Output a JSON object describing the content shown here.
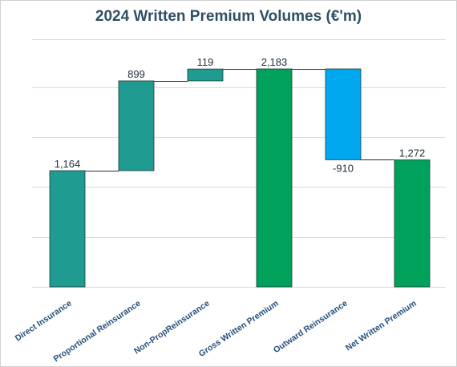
{
  "chart_data": {
    "type": "waterfall",
    "title": "2024 Written Premium Volumes (€'m)",
    "categories": [
      "Direct Insurance",
      "Proportional Reinsurance",
      "Non-PropReinsurance",
      "Gross Written Premium",
      "Outward Reinsurance",
      "Net Written Premium"
    ],
    "values": [
      1164,
      899,
      119,
      2183,
      -910,
      1272
    ],
    "labels": [
      "1,164",
      "899",
      "119",
      "2,183",
      "-910",
      "1,272"
    ],
    "kinds": [
      "increase",
      "increase",
      "increase",
      "total",
      "decrease",
      "total"
    ],
    "ylim": [
      0,
      2200
    ],
    "grid": true,
    "colors": {
      "increase": "#1f9b91",
      "total": "#00a15a",
      "decrease": "#00a8f0",
      "gridline": "#d9d9d9",
      "connector": "#1f2d3a"
    }
  }
}
